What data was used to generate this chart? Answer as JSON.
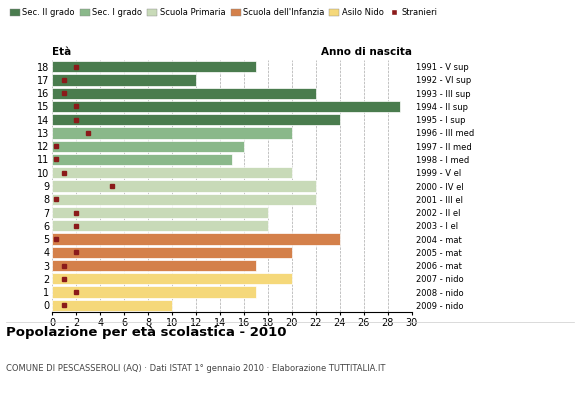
{
  "ages": [
    18,
    17,
    16,
    15,
    14,
    13,
    12,
    11,
    10,
    9,
    8,
    7,
    6,
    5,
    4,
    3,
    2,
    1,
    0
  ],
  "years": [
    "1991 - V sup",
    "1992 - VI sup",
    "1993 - III sup",
    "1994 - II sup",
    "1995 - I sup",
    "1996 - III med",
    "1997 - II med",
    "1998 - I med",
    "1999 - V el",
    "2000 - IV el",
    "2001 - III el",
    "2002 - II el",
    "2003 - I el",
    "2004 - mat",
    "2005 - mat",
    "2006 - mat",
    "2007 - nido",
    "2008 - nido",
    "2009 - nido"
  ],
  "bar_values": [
    17,
    12,
    22,
    29,
    24,
    20,
    16,
    15,
    20,
    22,
    22,
    18,
    18,
    24,
    20,
    17,
    20,
    17,
    10
  ],
  "stranieri_x": [
    2.0,
    1.0,
    1.0,
    2.0,
    2.0,
    3.0,
    0.3,
    0.3,
    1.0,
    5.0,
    0.3,
    2.0,
    2.0,
    0.3,
    2.0,
    1.0,
    1.0,
    2.0,
    1.0
  ],
  "colors": {
    "sec2": "#4a7c4e",
    "sec1": "#8ab88a",
    "primaria": "#c8dab8",
    "infanzia": "#d4804a",
    "nido": "#f5d87a",
    "stranieri": "#8b1a1a"
  },
  "legend_labels": [
    "Sec. II grado",
    "Sec. I grado",
    "Scuola Primaria",
    "Scuola dell'Infanzia",
    "Asilo Nido",
    "Stranieri"
  ],
  "legend_colors": [
    "#4a7c4e",
    "#8ab88a",
    "#c8dab8",
    "#d4804a",
    "#f5d87a",
    "#8b1a1a"
  ],
  "title": "Popolazione per età scolastica - 2010",
  "subtitle": "COMUNE DI PESCASSEROLI (AQ) · Dati ISTAT 1° gennaio 2010 · Elaborazione TUTTITALIA.IT",
  "xlim": [
    0,
    30
  ],
  "eta_label": "Età",
  "anno_label": "Anno di nascita",
  "xticks": [
    0,
    2,
    4,
    6,
    8,
    10,
    12,
    14,
    16,
    18,
    20,
    22,
    24,
    26,
    28,
    30
  ]
}
